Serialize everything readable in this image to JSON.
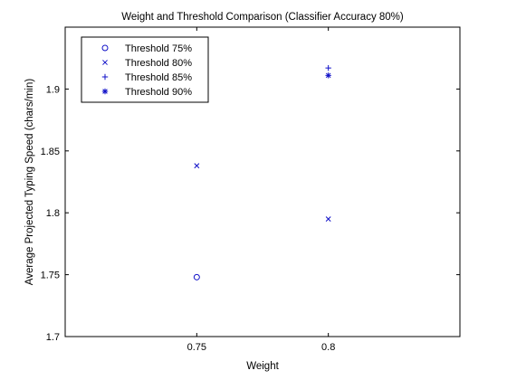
{
  "chart_data": {
    "type": "scatter",
    "title": "Weight and Threshold Comparison (Classifier Accuracy 80%)",
    "xlabel": "Weight",
    "ylabel": "Average Projected Typing Speed (chars/min)",
    "xlim": [
      0.7,
      0.85
    ],
    "ylim": [
      1.7,
      1.95
    ],
    "xticks": [
      0.75,
      0.8
    ],
    "yticks": [
      1.7,
      1.75,
      1.8,
      1.85,
      1.9
    ],
    "xtick_labels": [
      "0.75",
      "0.8"
    ],
    "ytick_labels": [
      "1.7",
      "1.75",
      "1.8",
      "1.85",
      "1.9"
    ],
    "grid": false,
    "legend_position": "top-left",
    "marker_color": "#1010c8",
    "series": [
      {
        "name": "Threshold 75%",
        "marker": "circle",
        "points": [
          {
            "x": 0.75,
            "y": 1.748
          }
        ]
      },
      {
        "name": "Threshold 80%",
        "marker": "x",
        "points": [
          {
            "x": 0.75,
            "y": 1.838
          },
          {
            "x": 0.8,
            "y": 1.795
          }
        ]
      },
      {
        "name": "Threshold 85%",
        "marker": "plus",
        "points": [
          {
            "x": 0.8,
            "y": 1.917
          }
        ]
      },
      {
        "name": "Threshold 90%",
        "marker": "star",
        "points": [
          {
            "x": 0.8,
            "y": 1.911
          }
        ]
      }
    ]
  }
}
